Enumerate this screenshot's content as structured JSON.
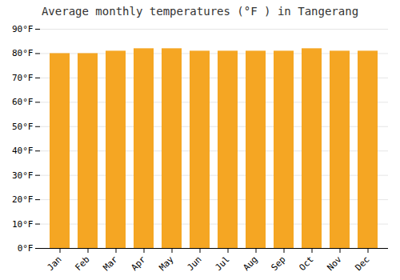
{
  "chart_data": {
    "type": "bar",
    "title": "Average monthly temperatures (°F ) in Tangerang",
    "categories": [
      "Jan",
      "Feb",
      "Mar",
      "Apr",
      "May",
      "Jun",
      "Jul",
      "Aug",
      "Sep",
      "Oct",
      "Nov",
      "Dec"
    ],
    "values": [
      80,
      80,
      81,
      82,
      82,
      81,
      81,
      81,
      81,
      82,
      81,
      81
    ],
    "color": "#F5A623",
    "ylim": [
      0,
      90
    ],
    "yticks": [
      {
        "value": 0,
        "label": "0°F"
      },
      {
        "value": 10,
        "label": "10°F"
      },
      {
        "value": 20,
        "label": "20°F"
      },
      {
        "value": 30,
        "label": "30°F"
      },
      {
        "value": 40,
        "label": "40°F"
      },
      {
        "value": 50,
        "label": "50°F"
      },
      {
        "value": 60,
        "label": "60°F"
      },
      {
        "value": 70,
        "label": "70°F"
      },
      {
        "value": 80,
        "label": "80°F"
      },
      {
        "value": 90,
        "label": "90°F"
      }
    ],
    "grid": true
  }
}
